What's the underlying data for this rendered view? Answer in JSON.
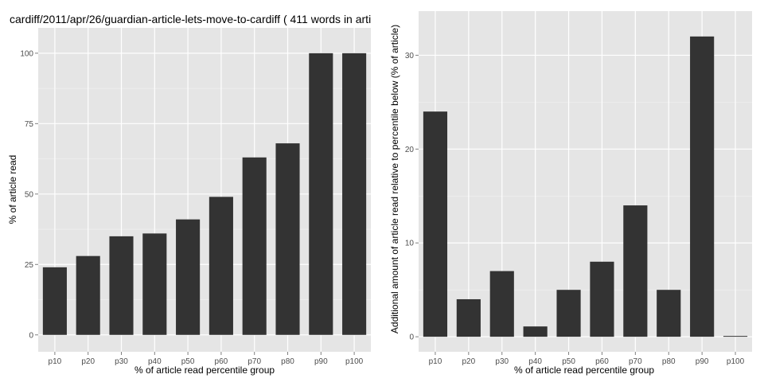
{
  "chart_data": [
    {
      "type": "bar",
      "title": "cardiff/2011/apr/26/guardian-article-lets-move-to-cardiff ( 411 words in arti",
      "xlabel": "% of article read percentile group",
      "ylabel": "% of article read",
      "categories": [
        "p10",
        "p20",
        "p30",
        "p40",
        "p50",
        "p60",
        "p70",
        "p80",
        "p90",
        "p100"
      ],
      "values": [
        24,
        28,
        35,
        36,
        41,
        49,
        63,
        68,
        100,
        100
      ],
      "yticks": [
        0,
        25,
        50,
        75,
        100
      ],
      "ylim": [
        -6,
        109
      ],
      "grid": true,
      "colors": {
        "bar": "#333333",
        "panel": "#e5e5e5",
        "grid": "#ffffff"
      }
    },
    {
      "type": "bar",
      "title": "",
      "xlabel": "% of article read percentile group",
      "ylabel": "Additional amount of article read relative to percentile below (% of article)",
      "categories": [
        "p10",
        "p20",
        "p30",
        "p40",
        "p50",
        "p60",
        "p70",
        "p80",
        "p90",
        "p100"
      ],
      "values": [
        24,
        4,
        7,
        1.1,
        5,
        8,
        14,
        5,
        32,
        0.05
      ],
      "yticks": [
        0,
        10,
        20,
        30
      ],
      "ylim": [
        -1.6,
        34.7
      ],
      "grid": true,
      "colors": {
        "bar": "#333333",
        "panel": "#e5e5e5",
        "grid": "#ffffff"
      }
    }
  ]
}
